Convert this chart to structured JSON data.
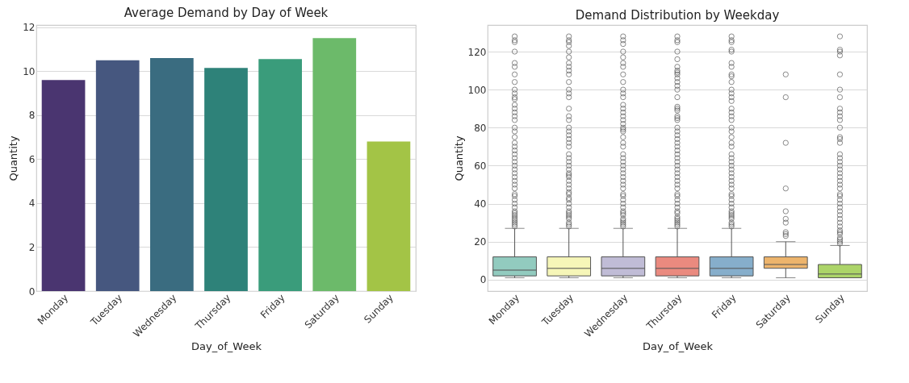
{
  "chart_data": [
    {
      "type": "bar",
      "title": "Average Demand by Day of Week",
      "xlabel": "Day_of_Week",
      "ylabel": "Quantity",
      "categories": [
        "Monday",
        "Tuesday",
        "Wednesday",
        "Thursday",
        "Friday",
        "Saturday",
        "Sunday"
      ],
      "values": [
        9.6,
        10.5,
        10.6,
        10.15,
        10.55,
        11.5,
        6.8
      ],
      "colors": [
        "#4a3570",
        "#46577f",
        "#3a6c80",
        "#2e8279",
        "#3a9c7b",
        "#6cba6a",
        "#a3c446"
      ],
      "ylim": [
        0,
        12.1
      ],
      "yticks": [
        0,
        2,
        4,
        6,
        8,
        10,
        12
      ],
      "grid": "y",
      "legend": false
    },
    {
      "type": "box",
      "title": "Demand Distribution by Weekday",
      "xlabel": "Day_of_Week",
      "ylabel": "Quantity",
      "categories": [
        "Monday",
        "Tuesday",
        "Wednesday",
        "Thursday",
        "Friday",
        "Saturday",
        "Sunday"
      ],
      "colors": [
        "#92cbbf",
        "#f6f6b8",
        "#c0bcd6",
        "#ea8a7f",
        "#86aecb",
        "#edb46c",
        "#acd469"
      ],
      "boxes": [
        {
          "low": 1,
          "q1": 2,
          "median": 5,
          "q3": 12,
          "high": 27,
          "outliers": [
            28,
            29,
            30,
            31,
            32,
            33,
            34,
            35,
            36,
            38,
            40,
            42,
            44,
            45,
            48,
            50,
            52,
            54,
            56,
            58,
            60,
            62,
            64,
            66,
            68,
            70,
            72,
            75,
            78,
            80,
            84,
            86,
            88,
            90,
            92,
            95,
            96,
            98,
            100,
            104,
            108,
            112,
            114,
            120,
            125,
            126,
            128
          ]
        },
        {
          "low": 1,
          "q1": 2,
          "median": 6,
          "q3": 12,
          "high": 27,
          "outliers": [
            28,
            29,
            30,
            32,
            33,
            34,
            35,
            36,
            38,
            40,
            42,
            43,
            45,
            46,
            48,
            50,
            52,
            54,
            55,
            56,
            58,
            60,
            62,
            64,
            66,
            70,
            72,
            74,
            76,
            78,
            80,
            84,
            86,
            90,
            96,
            98,
            100,
            104,
            108,
            110,
            112,
            114,
            117,
            120,
            123,
            125,
            126,
            128
          ]
        },
        {
          "low": 1,
          "q1": 2,
          "median": 6,
          "q3": 12,
          "high": 27,
          "outliers": [
            28,
            29,
            30,
            31,
            32,
            34,
            35,
            36,
            38,
            40,
            42,
            44,
            45,
            48,
            50,
            52,
            54,
            56,
            58,
            60,
            62,
            64,
            66,
            70,
            72,
            75,
            78,
            79,
            80,
            82,
            84,
            86,
            88,
            90,
            92,
            96,
            98,
            100,
            104,
            108,
            112,
            114,
            117,
            120,
            124,
            126,
            128
          ]
        },
        {
          "low": 1,
          "q1": 2,
          "median": 6,
          "q3": 12,
          "high": 27,
          "outliers": [
            28,
            29,
            30,
            31,
            32,
            33,
            35,
            36,
            38,
            40,
            42,
            44,
            45,
            48,
            50,
            52,
            54,
            56,
            58,
            60,
            62,
            64,
            66,
            68,
            70,
            72,
            74,
            76,
            78,
            80,
            84,
            85,
            86,
            89,
            90,
            91,
            96,
            100,
            102,
            104,
            106,
            108,
            109,
            110,
            112,
            116,
            120,
            125,
            126,
            128
          ]
        },
        {
          "low": 1,
          "q1": 2,
          "median": 6,
          "q3": 12,
          "high": 27,
          "outliers": [
            28,
            29,
            30,
            32,
            33,
            34,
            35,
            36,
            38,
            40,
            42,
            44,
            45,
            48,
            50,
            52,
            54,
            56,
            58,
            60,
            62,
            64,
            66,
            70,
            72,
            75,
            78,
            80,
            84,
            86,
            88,
            90,
            94,
            96,
            98,
            100,
            104,
            107,
            108,
            112,
            114,
            120,
            121,
            125,
            126,
            128
          ]
        },
        {
          "low": 1,
          "q1": 6,
          "median": 8,
          "q3": 12,
          "high": 20,
          "outliers": [
            23,
            24,
            25,
            30,
            32,
            36,
            48,
            72,
            96,
            108
          ]
        },
        {
          "low": 1,
          "q1": 1,
          "median": 3,
          "q3": 8,
          "high": 18,
          "outliers": [
            19,
            20,
            21,
            22,
            24,
            25,
            26,
            28,
            30,
            32,
            34,
            36,
            38,
            40,
            42,
            44,
            45,
            48,
            50,
            52,
            54,
            56,
            58,
            60,
            62,
            64,
            66,
            72,
            74,
            75,
            80,
            84,
            86,
            88,
            90,
            96,
            100,
            108,
            118,
            120,
            121,
            128
          ]
        }
      ],
      "ylim": [
        -6,
        134
      ],
      "yticks": [
        0,
        20,
        40,
        60,
        80,
        100,
        120
      ],
      "grid": "y"
    }
  ]
}
